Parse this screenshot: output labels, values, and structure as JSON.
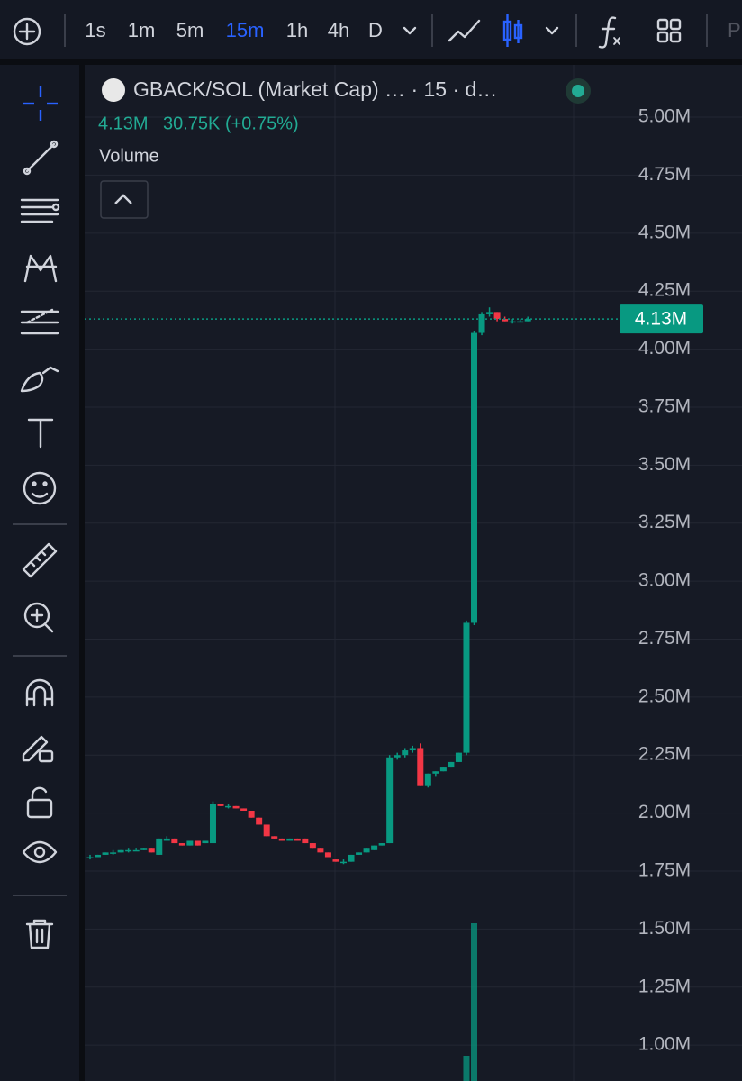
{
  "toolbar": {
    "intervals": [
      "1s",
      "1m",
      "5m",
      "15m",
      "1h",
      "4h",
      "D"
    ],
    "active_interval": 3,
    "overflow_label": "P"
  },
  "legend": {
    "price": "4.13M",
    "change": "30.75K (+0.75%)",
    "study": "Volume"
  },
  "chart_data": {
    "type": "candlestick",
    "title": "GBACK/SOL (Market Cap) … · 15 · d…",
    "up_color": "#089981",
    "down_color": "#f23645",
    "open": [
      1.81,
      1.81,
      1.82,
      1.83,
      1.83,
      1.84,
      1.84,
      1.84,
      1.85,
      1.82,
      1.88,
      1.89,
      1.87,
      1.86,
      1.88,
      1.87,
      1.87,
      2.04,
      2.03,
      2.03,
      2.02,
      2.01,
      1.98,
      1.95,
      1.9,
      1.89,
      1.88,
      1.89,
      1.89,
      1.87,
      1.85,
      1.83,
      1.8,
      1.79,
      1.79,
      1.82,
      1.83,
      1.84,
      1.86,
      1.87,
      2.24,
      2.25,
      2.27,
      2.28,
      2.12,
      2.17,
      2.18,
      2.2,
      2.22,
      2.26,
      2.82,
      4.07,
      4.15,
      4.16,
      4.13,
      4.12,
      4.12,
      4.12
    ],
    "high": [
      1.82,
      1.82,
      1.83,
      1.84,
      1.84,
      1.85,
      1.85,
      1.85,
      1.85,
      1.89,
      1.9,
      1.89,
      1.87,
      1.88,
      1.88,
      1.88,
      2.05,
      2.04,
      2.04,
      2.03,
      2.02,
      2.01,
      1.98,
      1.95,
      1.9,
      1.89,
      1.89,
      1.89,
      1.89,
      1.87,
      1.85,
      1.83,
      1.8,
      1.8,
      1.82,
      1.83,
      1.85,
      1.86,
      1.87,
      2.25,
      2.26,
      2.28,
      2.29,
      2.3,
      2.17,
      2.18,
      2.2,
      2.22,
      2.26,
      2.83,
      4.08,
      4.16,
      4.18,
      4.16,
      4.14,
      4.13,
      4.13,
      4.14
    ],
    "low": [
      1.8,
      1.81,
      1.82,
      1.82,
      1.83,
      1.83,
      1.84,
      1.84,
      1.83,
      1.82,
      1.88,
      1.87,
      1.86,
      1.86,
      1.86,
      1.87,
      1.87,
      2.03,
      2.02,
      2.02,
      2.01,
      1.98,
      1.95,
      1.9,
      1.89,
      1.88,
      1.88,
      1.88,
      1.87,
      1.85,
      1.83,
      1.81,
      1.79,
      1.78,
      1.79,
      1.82,
      1.83,
      1.84,
      1.86,
      1.87,
      2.23,
      2.24,
      2.26,
      2.12,
      2.11,
      2.16,
      2.18,
      2.2,
      2.22,
      2.25,
      2.81,
      4.06,
      4.14,
      4.12,
      4.12,
      4.11,
      4.12,
      4.12
    ],
    "close": [
      1.81,
      1.82,
      1.83,
      1.83,
      1.84,
      1.84,
      1.84,
      1.85,
      1.83,
      1.89,
      1.89,
      1.87,
      1.86,
      1.88,
      1.86,
      1.88,
      2.04,
      2.03,
      2.03,
      2.02,
      2.01,
      1.98,
      1.95,
      1.9,
      1.89,
      1.88,
      1.89,
      1.88,
      1.87,
      1.85,
      1.83,
      1.81,
      1.79,
      1.79,
      1.82,
      1.83,
      1.85,
      1.86,
      1.87,
      2.24,
      2.25,
      2.27,
      2.28,
      2.12,
      2.17,
      2.18,
      2.2,
      2.22,
      2.26,
      2.82,
      4.07,
      4.15,
      4.16,
      4.13,
      4.12,
      4.12,
      4.12,
      4.13
    ],
    "volume": {
      "values": [
        0,
        0,
        0,
        0,
        0,
        0,
        0,
        0,
        0,
        0,
        0,
        0,
        0,
        0,
        0,
        0,
        0,
        0,
        0,
        0,
        0,
        0,
        0,
        0,
        0,
        0,
        0,
        0,
        0,
        0,
        0,
        0,
        0,
        0,
        0,
        0,
        0,
        0,
        0,
        0,
        0,
        0,
        0,
        0,
        0,
        0,
        0,
        0,
        0,
        16,
        100,
        0,
        0,
        0,
        0,
        0,
        0,
        0
      ],
      "ylim": [
        0,
        100
      ]
    },
    "ylim": [
      0.845,
      5.241
    ],
    "yticks": [
      {
        "value": 5,
        "label": "5.00M"
      },
      {
        "value": 4.75,
        "label": "4.75M"
      },
      {
        "value": 4.5,
        "label": "4.50M"
      },
      {
        "value": 4.25,
        "label": "4.25M"
      },
      {
        "value": 4,
        "label": "4.00M"
      },
      {
        "value": 3.75,
        "label": "3.75M"
      },
      {
        "value": 3.5,
        "label": "3.50M"
      },
      {
        "value": 3.25,
        "label": "3.25M"
      },
      {
        "value": 3,
        "label": "3.00M"
      },
      {
        "value": 2.75,
        "label": "2.75M"
      },
      {
        "value": 2.5,
        "label": "2.50M"
      },
      {
        "value": 2.25,
        "label": "2.25M"
      },
      {
        "value": 2,
        "label": "2.00M"
      },
      {
        "value": 1.75,
        "label": "1.75M"
      },
      {
        "value": 1.5,
        "label": "1.50M"
      },
      {
        "value": 1.25,
        "label": "1.25M"
      },
      {
        "value": 1,
        "label": "1.00M"
      }
    ],
    "last_price": {
      "value": 4.13,
      "label": "4.13M"
    },
    "grid": true
  }
}
